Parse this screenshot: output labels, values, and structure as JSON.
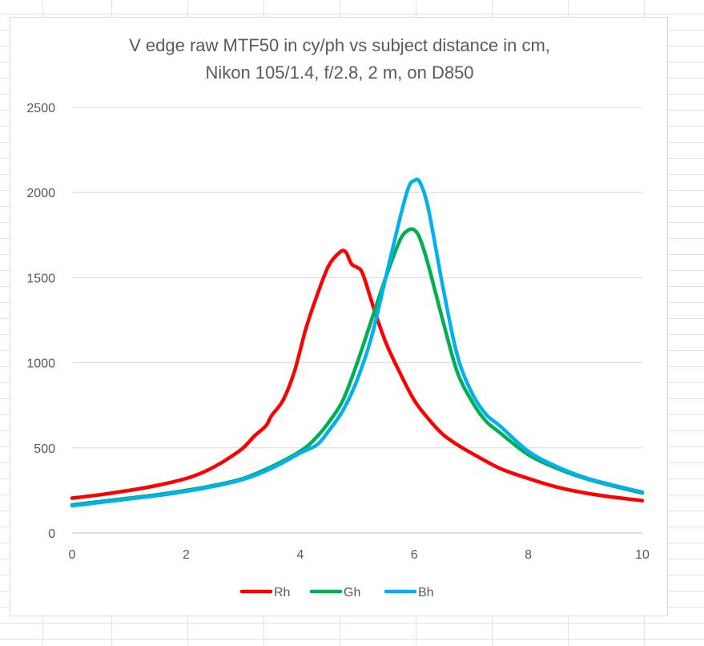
{
  "chart_data": {
    "type": "line",
    "title_lines": [
      "V edge raw MTF50 in cy/ph vs subject distance in cm,",
      "Nikon 105/1.4, f/2.8, 2 m, on D850"
    ],
    "xlabel": "",
    "ylabel": "",
    "xlim": [
      0,
      10
    ],
    "ylim": [
      0,
      2500
    ],
    "xticks": [
      0,
      2,
      4,
      6,
      8,
      10
    ],
    "yticks": [
      0,
      500,
      1000,
      1500,
      2000,
      2500
    ],
    "grid": "horizontal",
    "legend_position": "bottom",
    "series": [
      {
        "name": "Rh",
        "color": "#ff0000",
        "x": [
          0,
          0.5,
          1,
          1.5,
          2,
          2.25,
          2.5,
          2.75,
          3,
          3.2,
          3.4,
          3.5,
          3.7,
          3.9,
          4.1,
          4.3,
          4.5,
          4.7,
          4.8,
          4.9,
          5.0,
          5.1,
          5.3,
          5.5,
          5.75,
          6.0,
          6.25,
          6.5,
          6.75,
          7.0,
          7.5,
          8.0,
          8.5,
          9.0,
          9.5,
          10
        ],
        "y": [
          205,
          225,
          250,
          280,
          320,
          350,
          390,
          440,
          500,
          570,
          630,
          690,
          780,
          950,
          1200,
          1400,
          1570,
          1650,
          1650,
          1580,
          1560,
          1520,
          1310,
          1120,
          940,
          780,
          670,
          580,
          520,
          470,
          380,
          320,
          270,
          235,
          210,
          190
        ]
      },
      {
        "name": "Gh",
        "color": "#00b050",
        "x": [
          0,
          0.5,
          1,
          1.5,
          2,
          2.5,
          3,
          3.5,
          4,
          4.25,
          4.5,
          4.75,
          5.0,
          5.25,
          5.5,
          5.75,
          5.9,
          6.0,
          6.1,
          6.25,
          6.5,
          6.75,
          7.0,
          7.25,
          7.5,
          8.0,
          8.5,
          9.0,
          9.5,
          10
        ],
        "y": [
          165,
          185,
          205,
          225,
          250,
          280,
          320,
          390,
          480,
          550,
          650,
          780,
          1000,
          1250,
          1500,
          1720,
          1780,
          1780,
          1730,
          1570,
          1250,
          950,
          780,
          660,
          590,
          460,
          380,
          320,
          275,
          235
        ]
      },
      {
        "name": "Bh",
        "color": "#00b0f0",
        "x": [
          0,
          0.5,
          1,
          1.5,
          2,
          2.5,
          3,
          3.5,
          4,
          4.3,
          4.5,
          4.75,
          5.0,
          5.25,
          5.5,
          5.75,
          5.9,
          6.0,
          6.1,
          6.25,
          6.5,
          6.75,
          7.0,
          7.25,
          7.5,
          8.0,
          8.5,
          9.0,
          9.5,
          10
        ],
        "y": [
          160,
          180,
          200,
          220,
          245,
          275,
          315,
          380,
          470,
          520,
          600,
          720,
          900,
          1150,
          1500,
          1850,
          2030,
          2070,
          2060,
          1900,
          1450,
          1050,
          830,
          700,
          630,
          480,
          390,
          325,
          280,
          240
        ]
      }
    ]
  }
}
